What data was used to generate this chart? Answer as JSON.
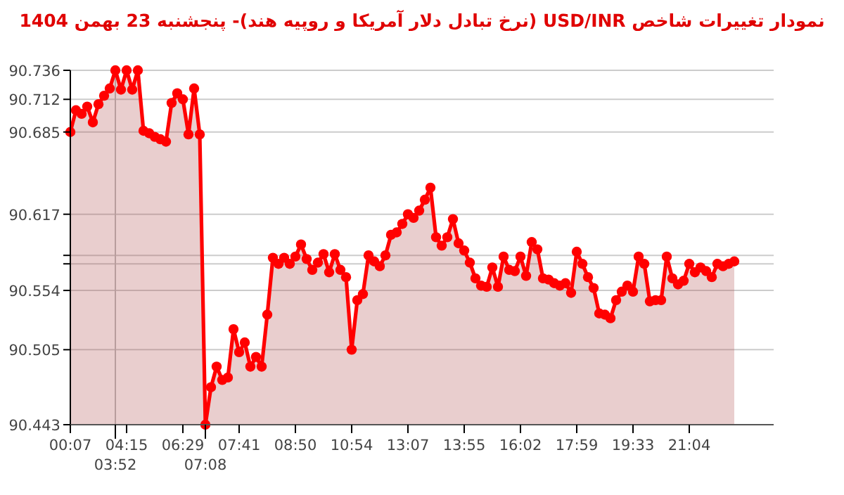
{
  "chart_data": {
    "type": "area",
    "title": "نمودار تغییرات شاخص USD/INR (نرخ تبادل دلار آمریکا و روپیه هند)- پنجشنبه 23 بهمن 1404",
    "categories": [
      "00:07",
      null,
      null,
      null,
      null,
      null,
      null,
      null,
      "03:52",
      null,
      "04:15",
      null,
      null,
      null,
      null,
      null,
      null,
      null,
      null,
      null,
      "06:29",
      null,
      null,
      null,
      "07:08",
      null,
      null,
      null,
      null,
      null,
      "07:41",
      null,
      null,
      null,
      null,
      null,
      null,
      null,
      null,
      null,
      "08:50",
      null,
      null,
      null,
      null,
      null,
      null,
      null,
      null,
      null,
      "10:54",
      null,
      null,
      null,
      null,
      null,
      null,
      null,
      null,
      null,
      "13:07",
      null,
      null,
      null,
      null,
      null,
      null,
      null,
      null,
      null,
      "13:55",
      null,
      null,
      null,
      null,
      null,
      null,
      null,
      null,
      null,
      "16:02",
      null,
      null,
      null,
      null,
      null,
      null,
      null,
      null,
      null,
      "17:59",
      null,
      null,
      null,
      null,
      null,
      null,
      null,
      null,
      null,
      "19:33",
      null,
      null,
      null,
      null,
      null,
      null,
      null,
      null,
      null,
      "21:04",
      null,
      null,
      null,
      null,
      null,
      null,
      null,
      null,
      null,
      null,
      null,
      null,
      null,
      null,
      null
    ],
    "series": [
      {
        "color": "#ff0000",
        "values": [
          90.685,
          90.703,
          90.7,
          90.706,
          90.693,
          90.708,
          90.715,
          90.721,
          90.736,
          90.72,
          90.736,
          90.72,
          90.736,
          90.686,
          90.684,
          90.681,
          90.679,
          90.677,
          90.709,
          90.717,
          90.712,
          90.683,
          90.721,
          90.683,
          90.443,
          90.474,
          90.491,
          90.48,
          90.482,
          90.522,
          90.503,
          90.511,
          90.491,
          90.499,
          90.491,
          90.534,
          90.581,
          90.576,
          90.581,
          90.576,
          90.582,
          90.592,
          90.58,
          90.571,
          90.577,
          90.584,
          90.569,
          90.584,
          90.571,
          90.565,
          90.505,
          90.546,
          90.551,
          90.583,
          90.578,
          90.574,
          90.583,
          90.6,
          90.602,
          90.609,
          90.617,
          90.614,
          90.62,
          90.629,
          90.639,
          90.598,
          90.591,
          90.598,
          90.613,
          90.593,
          90.587,
          90.577,
          90.564,
          90.558,
          90.557,
          90.573,
          90.557,
          90.582,
          90.571,
          90.57,
          90.582,
          90.566,
          90.594,
          90.588,
          90.564,
          90.563,
          90.56,
          90.558,
          90.56,
          90.552,
          90.586,
          90.576,
          90.565,
          90.556,
          90.535,
          90.534,
          90.531,
          90.546,
          90.553,
          90.558,
          90.553,
          90.582,
          90.576,
          90.545,
          90.546,
          90.546,
          90.582,
          90.564,
          90.559,
          90.562,
          90.576,
          90.569,
          90.573,
          90.57,
          90.565,
          90.576,
          90.574,
          90.576,
          90.578,
          null,
          null,
          null,
          null,
          null,
          null,
          null
        ]
      }
    ],
    "ylim": [
      90.443,
      90.736
    ],
    "yticks": [
      90.443,
      90.505,
      90.554,
      {
        "value": 90.576,
        "label": null
      },
      {
        "value": 90.583,
        "label": null
      },
      90.617,
      90.685,
      90.712,
      90.736
    ],
    "grid": "y",
    "marker": "circle",
    "line_style": "solid",
    "ref_lines": [
      {
        "axis": "x",
        "value": "03:52",
        "color": "#bbbbbb"
      }
    ]
  }
}
